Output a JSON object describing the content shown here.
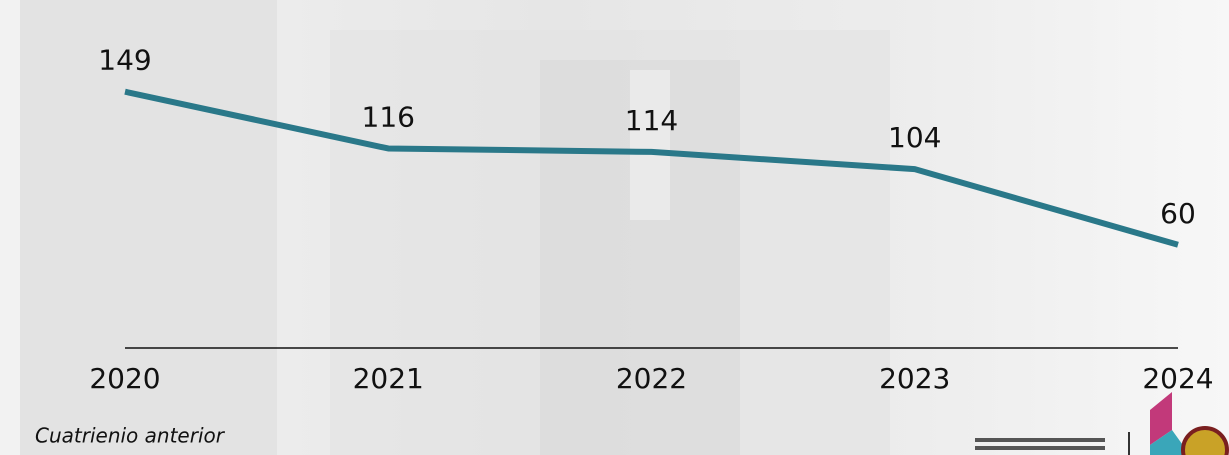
{
  "chart_data": {
    "type": "line",
    "categories": [
      "2020",
      "2021",
      "2022",
      "2023",
      "2024"
    ],
    "values": [
      149,
      116,
      114,
      104,
      60
    ],
    "color": "#2a7889",
    "ylim": [
      0,
      200
    ],
    "annotation": "Cuatrienio anterior"
  }
}
